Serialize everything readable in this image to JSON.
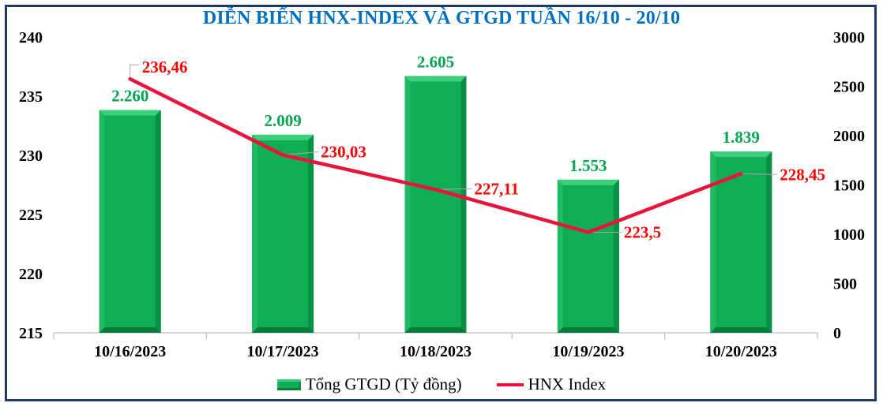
{
  "title": "DIỄN BIẾN HNX-INDEX VÀ GTGD TUẦN 16/10 - 20/10",
  "legend": {
    "items": [
      {
        "label": "Tổng GTGD (Tỷ đồng)",
        "swatch": "bar-swatch"
      },
      {
        "label": "HNX Index",
        "swatch": "line-swatch"
      }
    ],
    "position": "bottom"
  },
  "colors": {
    "title": "#0070C0",
    "frame_border": "#1F3864",
    "bar_fill": "#0FAE55",
    "bar_bevel_top": "#3ECF7D",
    "bar_bevel_left": "#1FBB63",
    "bar_bevel_right": "#089045",
    "bar_bevel_bottom": "#077B3C",
    "bar_label": "#00A551",
    "line": "#E8143C",
    "line_label": "#FF0000",
    "leader_line": "#AAAAAA",
    "axis_line": "#BFBFBF",
    "axis_text": "#000000"
  },
  "chart_data": {
    "type": "bar+line",
    "title": "DIỄN BIẾN HNX-INDEX VÀ GTGD TUẦN 16/10 - 20/10",
    "categories": [
      "10/16/2023",
      "10/17/2023",
      "10/18/2023",
      "10/19/2023",
      "10/20/2023"
    ],
    "series": [
      {
        "name": "Tổng GTGD (Tỷ đồng)",
        "type": "bar",
        "axis": "right",
        "values": [
          2260,
          2009,
          2605,
          1553,
          1839
        ],
        "value_labels": [
          "2.260",
          "2.009",
          "2.605",
          "1.553",
          "1.839"
        ]
      },
      {
        "name": "HNX Index",
        "type": "line",
        "axis": "left",
        "values": [
          236.46,
          230.03,
          227.11,
          223.5,
          228.45
        ],
        "value_labels": [
          "236,46",
          "230,03",
          "227,11",
          "223,5",
          "228,45"
        ]
      }
    ],
    "left_axis": {
      "min": 215,
      "max": 240,
      "step": 5,
      "tick_labels": [
        "215",
        "220",
        "225",
        "230",
        "235",
        "240"
      ]
    },
    "right_axis": {
      "min": 0,
      "max": 3000,
      "step": 500,
      "tick_labels": [
        "0",
        "500",
        "1000",
        "1500",
        "2000",
        "2500",
        "3000"
      ]
    },
    "grid": false,
    "legend_position": "bottom"
  }
}
